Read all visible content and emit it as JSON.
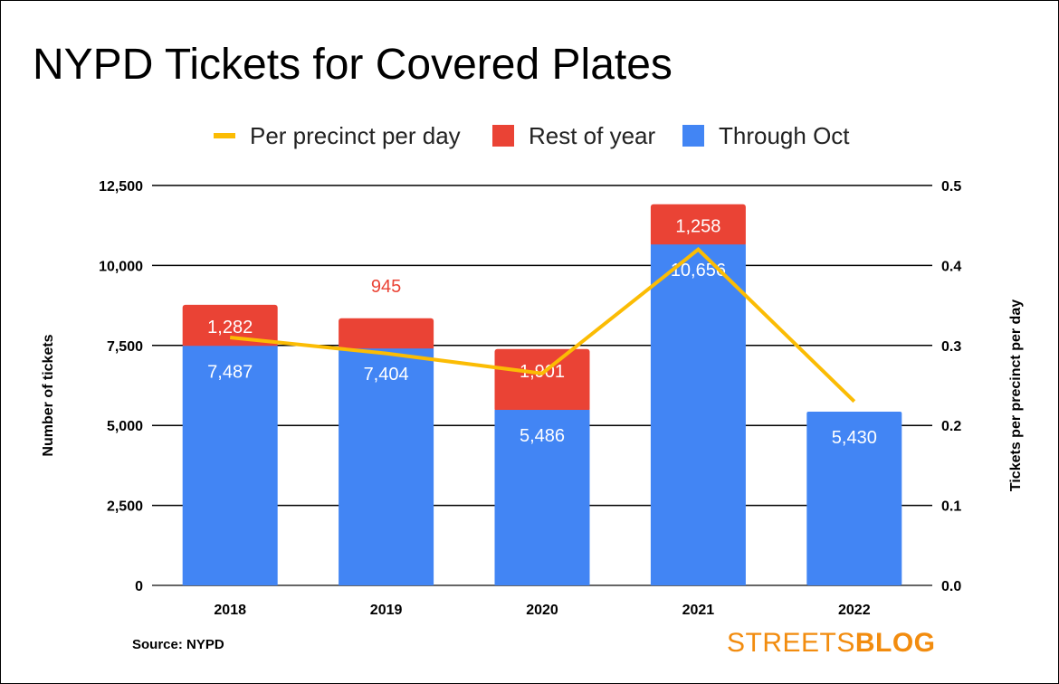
{
  "chart_data": {
    "type": "bar",
    "title": "NYPD Tickets for Covered Plates",
    "categories": [
      "2018",
      "2019",
      "2020",
      "2021",
      "2022"
    ],
    "series": [
      {
        "name": "Through Oct",
        "kind": "bar",
        "axis": "left",
        "color": "#4285f4",
        "values": [
          7487,
          7404,
          5486,
          10656,
          5430
        ],
        "labels": [
          "7,487",
          "7,404",
          "5,486",
          "10,656",
          "5,430"
        ]
      },
      {
        "name": "Rest of year",
        "kind": "bar",
        "axis": "left",
        "color": "#ea4335",
        "values": [
          1282,
          945,
          1901,
          1258,
          null
        ],
        "labels": [
          "1,282",
          "945",
          "1,901",
          "1,258",
          ""
        ]
      },
      {
        "name": "Per precinct per day",
        "kind": "line",
        "axis": "right",
        "color": "#fbbc04",
        "values": [
          0.31,
          0.29,
          0.265,
          0.42,
          0.23
        ]
      }
    ],
    "stacked": true,
    "ylabel": "Number of tickets",
    "y2label": "Tickets per precinct per day",
    "ylim": [
      0,
      12500
    ],
    "y2lim": [
      0,
      0.5
    ],
    "yticks": [
      "0",
      "2,500",
      "5,000",
      "7,500",
      "10,000",
      "12,500"
    ],
    "y2ticks": [
      "0.0",
      "0.1",
      "0.2",
      "0.3",
      "0.4",
      "0.5"
    ],
    "grid": true,
    "legend": "top"
  },
  "source": "Source: NYPD",
  "logo": {
    "part1": "STREETS",
    "part2": "BLOG"
  }
}
